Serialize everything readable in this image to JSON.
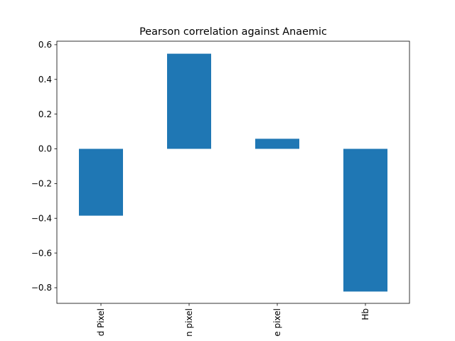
{
  "chart_data": {
    "type": "bar",
    "title": "Pearson correlation against Anaemic",
    "xlabel": "",
    "ylabel": "",
    "categories": [
      "d Pixel",
      "n pixel",
      "e pixel",
      "Hb"
    ],
    "values": [
      -0.385,
      0.548,
      0.058,
      -0.822
    ],
    "ylim": [
      -0.89,
      0.62
    ],
    "yticks": [
      -0.8,
      -0.6,
      -0.4,
      -0.2,
      0.0,
      0.2,
      0.4,
      0.6
    ],
    "ytick_labels": [
      "−0.8",
      "−0.6",
      "−0.4",
      "−0.2",
      "0.0",
      "0.2",
      "0.4",
      "0.6"
    ],
    "grid": false,
    "legend": "none",
    "colors": {
      "bar": "#1f77b4"
    }
  }
}
